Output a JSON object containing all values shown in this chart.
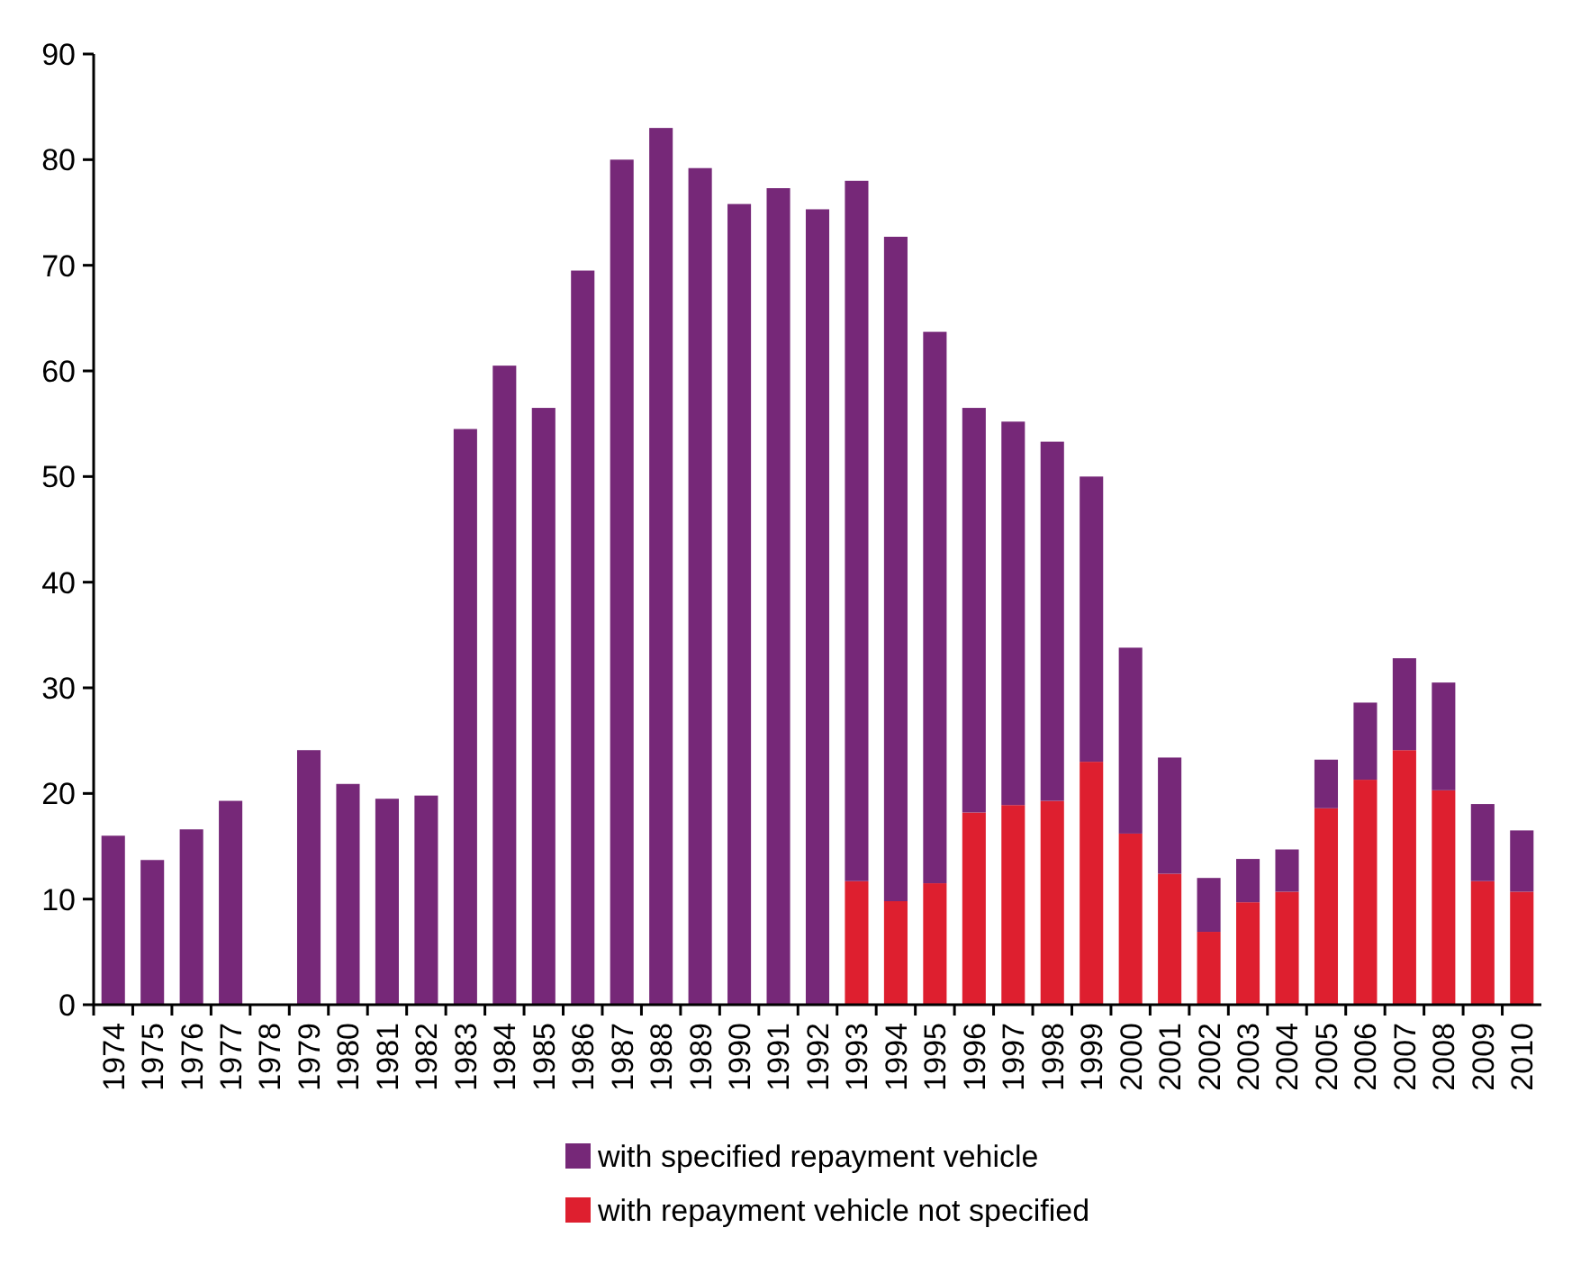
{
  "chart_data": {
    "type": "bar",
    "stacked": true,
    "categories": [
      "1974",
      "1975",
      "1976",
      "1977",
      "1978",
      "1979",
      "1980",
      "1981",
      "1982",
      "1983",
      "1984",
      "1985",
      "1986",
      "1987",
      "1988",
      "1989",
      "1990",
      "1991",
      "1992",
      "1993",
      "1994",
      "1995",
      "1996",
      "1997",
      "1998",
      "1999",
      "2000",
      "2001",
      "2002",
      "2003",
      "2004",
      "2005",
      "2006",
      "2007",
      "2008",
      "2009",
      "2010"
    ],
    "series": [
      {
        "name": "with repayment vehicle not specified",
        "color": "#de1f2f",
        "values": [
          null,
          null,
          null,
          null,
          null,
          null,
          null,
          null,
          null,
          null,
          null,
          null,
          null,
          null,
          null,
          null,
          null,
          null,
          null,
          11.7,
          9.8,
          11.5,
          18.2,
          18.9,
          19.3,
          23,
          16.2,
          12.4,
          6.9,
          9.7,
          10.7,
          18.6,
          21.3,
          24.1,
          20.3,
          11.7,
          10.7
        ]
      },
      {
        "name": "with specified repayment vehicle",
        "color": "#762878",
        "values": [
          16,
          13.7,
          16.6,
          19.3,
          null,
          24.1,
          20.9,
          19.5,
          19.8,
          54.5,
          60.5,
          56.5,
          69.5,
          80,
          83,
          79.2,
          75.8,
          77.3,
          75.3,
          66.3,
          62.9,
          52.2,
          38.3,
          36.3,
          34,
          27,
          17.6,
          11,
          5.1,
          4.1,
          4,
          4.6,
          7.3,
          8.7,
          10.2,
          7.3,
          5.8
        ]
      }
    ],
    "ylim": [
      0,
      90
    ],
    "yticks": [
      0,
      10,
      20,
      30,
      40,
      50,
      60,
      70,
      80,
      90
    ],
    "grid": false,
    "legend": "bottom"
  }
}
